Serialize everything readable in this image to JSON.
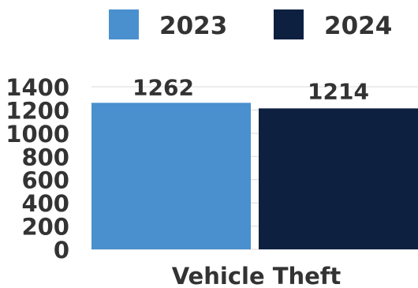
{
  "chart_data": {
    "type": "bar",
    "categories": [
      "Vehicle Theft"
    ],
    "series": [
      {
        "name": "2023",
        "values": [
          1262
        ],
        "color": "#4a90cf"
      },
      {
        "name": "2024",
        "values": [
          1214
        ],
        "color": "#0d2040"
      }
    ],
    "y_ticks": [
      "0",
      "200",
      "400",
      "600",
      "800",
      "1000",
      "1200",
      "1400"
    ],
    "data_labels": [
      "1262",
      "1214"
    ],
    "ylim": [
      0,
      1400
    ],
    "grid": true,
    "legend_position": "top"
  }
}
